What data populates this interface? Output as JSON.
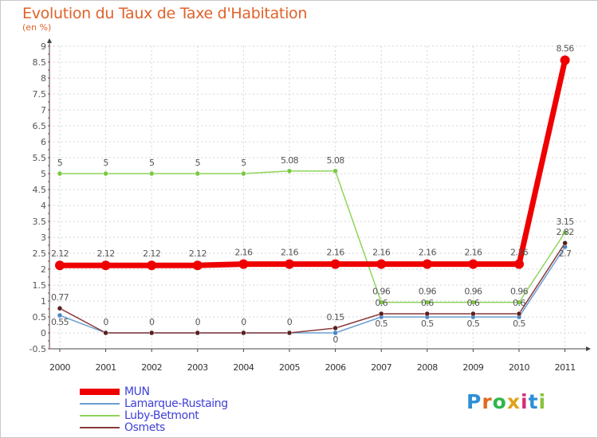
{
  "chart_data": {
    "type": "line",
    "title": "Evolution du Taux de Taxe d'Habitation",
    "subtitle": "(en %)",
    "x": [
      "2000",
      "2001",
      "2002",
      "2003",
      "2004",
      "2005",
      "2006",
      "2007",
      "2008",
      "2009",
      "2010",
      "2011"
    ],
    "ylim": [
      -0.5,
      9
    ],
    "yticks": [
      "-0.5",
      "0",
      "0.5",
      "1",
      "1.5",
      "2",
      "2.5",
      "3",
      "3.5",
      "4",
      "4.5",
      "5",
      "5.5",
      "6",
      "6.5",
      "7",
      "7.5",
      "8",
      "8.5",
      "9"
    ],
    "grid": true,
    "series": [
      {
        "name": "Lamarque-Rustaing",
        "color": "#6a9fd4",
        "marker": "#4a86c8",
        "values": [
          0.55,
          0,
          0,
          0,
          0,
          0,
          0,
          0.5,
          0.5,
          0.5,
          0.5,
          2.7
        ],
        "labels": [
          "0.55",
          "",
          "",
          "",
          "",
          "",
          "0",
          "0.5",
          "0.5",
          "0.5",
          "0.5",
          "2.7"
        ]
      },
      {
        "name": "Luby-Betmont",
        "color": "#8ed45a",
        "marker": "#7cc844",
        "values": [
          5,
          5,
          5,
          5,
          5,
          5.08,
          5.08,
          0.96,
          0.96,
          0.96,
          0.96,
          3.15
        ],
        "labels": [
          "5",
          "5",
          "5",
          "5",
          "5",
          "5.08",
          "5.08",
          "0.96",
          "0.96",
          "0.96",
          "0.96",
          "3.15"
        ]
      },
      {
        "name": "Osmets",
        "color": "#8b3a3a",
        "marker": "#5a1f1f",
        "values": [
          0.77,
          0,
          0,
          0,
          0,
          0,
          0.15,
          0.6,
          0.6,
          0.6,
          0.6,
          2.82
        ],
        "labels": [
          "0.77",
          "0",
          "0",
          "0",
          "0",
          "0",
          "0.15",
          "0.6",
          "0.6",
          "0.6",
          "0.6",
          "2.82"
        ]
      },
      {
        "name": "MUN",
        "color": "#ee0000",
        "marker": "#ee0000",
        "values": [
          2.12,
          2.12,
          2.12,
          2.12,
          2.16,
          2.16,
          2.16,
          2.16,
          2.16,
          2.16,
          2.16,
          8.56
        ],
        "labels": [
          "2.12",
          "2.12",
          "2.12",
          "2.12",
          "2.16",
          "2.16",
          "2.16",
          "2.16",
          "2.16",
          "2.16",
          "2.16",
          "8.56"
        ]
      }
    ],
    "legend": {
      "position": "bottom-left",
      "entries": [
        "MUN",
        "Lamarque-Rustaing",
        "Luby-Betmont",
        "Osmets"
      ]
    }
  },
  "branding": {
    "logo_text": "Proxiti",
    "logo_colors": [
      "#2d8fd6",
      "#e06a1c",
      "#2db84a",
      "#e0a21c",
      "#d62d7a",
      "#2d8fd6",
      "#88c43c"
    ]
  }
}
